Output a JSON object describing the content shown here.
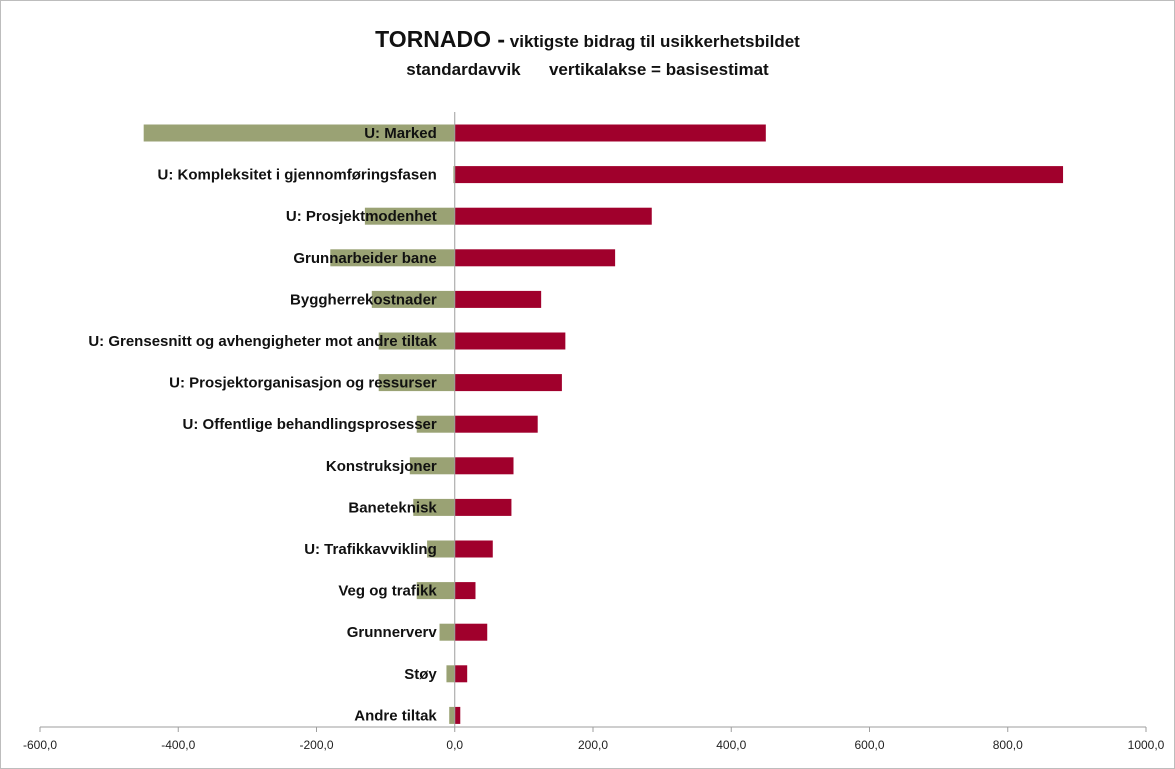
{
  "chart_data": {
    "type": "bar",
    "orientation": "horizontal",
    "title_main": "TORNADO -",
    "title_rest": " viktigste bidrag til usikkerhetsbildet",
    "subtitle": "standardavvik      vertikalakse = basisestimat",
    "categories": [
      "U: Marked",
      "U: Kompleksitet i gjennomføringsfasen",
      "U: Prosjektmodenhet",
      "Grunnarbeider bane",
      "Byggherrekostnader",
      "U: Grensesnitt og avhengigheter mot andre tiltak",
      "U: Prosjektorganisasjon og ressurser",
      "U: Offentlige behandlingsprosesser",
      "Konstruksjoner",
      "Baneteknisk",
      "U: Trafikkavvikling",
      "Veg og trafikk",
      "Grunnerverv",
      "Støy",
      "Andre tiltak"
    ],
    "series": [
      {
        "values": [
          -450,
          -2,
          -130,
          -180,
          -120,
          -110,
          -110,
          -55,
          -65,
          -60,
          -40,
          -55,
          -22,
          -12,
          -8
        ]
      },
      {
        "values": [
          450,
          880,
          285,
          232,
          125,
          160,
          155,
          120,
          85,
          82,
          55,
          30,
          47,
          18,
          8
        ]
      }
    ],
    "xlim": [
      -600,
      1000
    ],
    "x_ticks": [
      -600,
      -400,
      -200,
      0,
      200,
      400,
      600,
      800,
      1000
    ],
    "x_tick_labels": [
      "-600,0",
      "-400,0",
      "-200,0",
      "0,0",
      "200,0",
      "400,0",
      "600,0",
      "800,0",
      "1000,0"
    ],
    "colors": {
      "negative": "#9aa274",
      "positive": "#a0002c"
    },
    "grid": false
  }
}
